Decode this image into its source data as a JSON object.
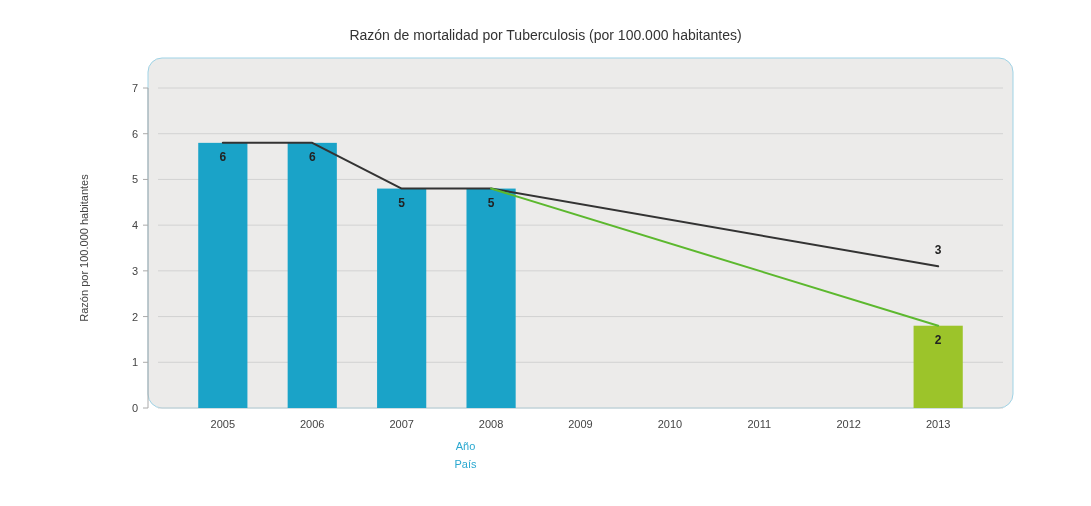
{
  "chart_data": {
    "type": "bar",
    "title": "Razón de mortalidad por Tuberculosis (por 100.000 habitantes)",
    "xlabel": "Año",
    "ylabel": "Razón por 100.000 habitantes",
    "annotations": [
      "País"
    ],
    "categories": [
      "2005",
      "2006",
      "2007",
      "2008",
      "2009",
      "2010",
      "2011",
      "2012",
      "2013"
    ],
    "series": [
      {
        "colors": [
          "#1aa3c8",
          "#1aa3c8",
          "#1aa3c8",
          "#1aa3c8",
          null,
          null,
          null,
          null,
          "#9cc42a"
        ],
        "values": [
          5.8,
          5.8,
          4.8,
          4.8,
          null,
          null,
          null,
          null,
          1.8
        ],
        "value_labels": [
          "6",
          "6",
          "5",
          "5",
          null,
          null,
          null,
          null,
          "2"
        ]
      },
      {
        "type": "line",
        "color": "#333333",
        "values": [
          5.8,
          5.8,
          4.8,
          4.8,
          null,
          null,
          null,
          null,
          3.1
        ],
        "value_labels": [
          null,
          null,
          null,
          null,
          null,
          null,
          null,
          null,
          "3"
        ]
      },
      {
        "type": "line",
        "color": "#5cb82e",
        "values": [
          null,
          null,
          null,
          4.8,
          null,
          null,
          null,
          null,
          1.8
        ]
      }
    ],
    "ylim": [
      0,
      7
    ],
    "yticks": [
      0,
      1,
      2,
      3,
      4,
      5,
      6,
      7
    ],
    "grid": "y"
  }
}
